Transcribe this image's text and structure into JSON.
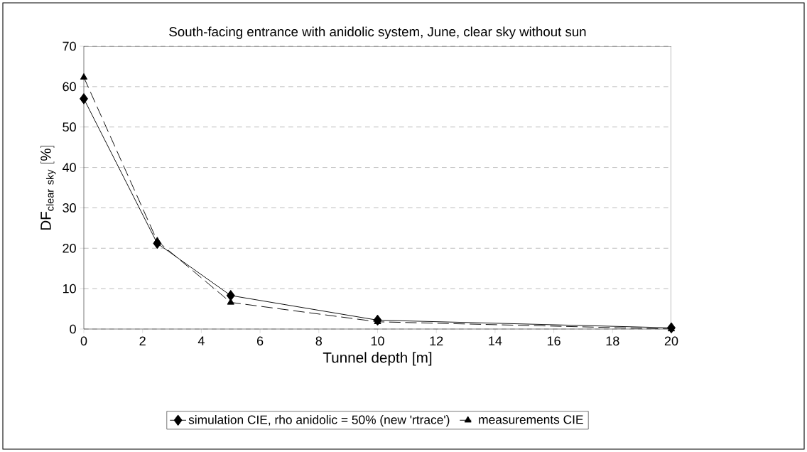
{
  "chart_data": {
    "type": "line",
    "title": "South-facing entrance with anidolic system, June, clear sky without sun",
    "xlabel": "Tunnel depth [m]",
    "ylabel": "\\mathrm{DF}_{\\mathrm{clear\\ sky}}\\ [\\%]",
    "x": [
      0,
      2.5,
      5,
      10,
      20
    ],
    "series": [
      {
        "name": "simulation CIE, rho anidolic = 50% (new 'rtrace')",
        "color": "#000000",
        "marker": "diamond",
        "line_style": "solid",
        "values": [
          57,
          21.2,
          8.3,
          2.2,
          0.3
        ]
      },
      {
        "name": "measurements CIE",
        "color": "#000000",
        "marker": "triangle",
        "line_style": "dashed",
        "values": [
          62.3,
          21.8,
          6.6,
          1.8,
          0
        ]
      }
    ],
    "xlim": [
      0,
      20
    ],
    "xticks": [
      0,
      2,
      4,
      6,
      8,
      10,
      12,
      14,
      16,
      18,
      20
    ],
    "ylim": [
      0,
      70
    ],
    "yticks": [
      0,
      10,
      20,
      30,
      40,
      50,
      60,
      70
    ],
    "grid": "y",
    "legend": "bottom"
  }
}
